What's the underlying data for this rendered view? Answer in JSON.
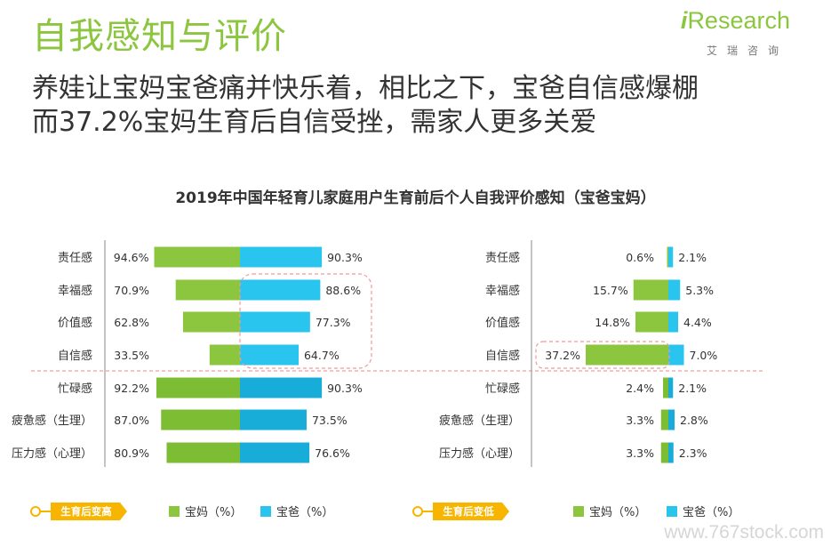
{
  "header": {
    "title": "自我感知与评价",
    "subtitle_line1": "养娃让宝妈宝爸痛并快乐着，相比之下，宝爸自信感爆棚",
    "subtitle_line2": "而37.2%宝妈生育后自信受挫，需家人更多关爱",
    "brand": "Research",
    "brand_prefix": "i",
    "brand_cn": "艾瑞咨询"
  },
  "watermark": "www.767stock.com",
  "colors": {
    "mom": "#8cc63f",
    "dad": "#29c5ef",
    "accent": "#f7b500",
    "highlight": "#f09a9a"
  },
  "chart_data": [
    {
      "type": "bar",
      "title": "2019年中国年轻育儿家庭用户生育前后个人自我评价感知（宝爸宝妈）",
      "legend_tag": "生育后变高",
      "categories": [
        "责任感",
        "幸福感",
        "价值感",
        "自信感",
        "忙碌感",
        "疲惫感（生理）",
        "压力感（心理）"
      ],
      "series": [
        {
          "name": "宝妈（%）",
          "values": [
            94.6,
            70.9,
            62.8,
            33.5,
            92.2,
            87.0,
            80.9
          ],
          "labels": [
            "94.6%",
            "70.9%",
            "62.8%",
            "33.5%",
            "92.2%",
            "87.0%",
            "80.9%"
          ]
        },
        {
          "name": "宝爸（%）",
          "values": [
            90.3,
            88.6,
            77.3,
            64.7,
            90.3,
            73.5,
            76.6
          ],
          "labels": [
            "90.3%",
            "88.6%",
            "77.3%",
            "64.7%",
            "90.3%",
            "73.5%",
            "76.6%"
          ]
        }
      ]
    },
    {
      "type": "bar",
      "title": "",
      "legend_tag": "生育后变低",
      "categories": [
        "责任感",
        "幸福感",
        "价值感",
        "自信感",
        "忙碌感",
        "疲惫感（生理）",
        "压力感（心理）"
      ],
      "series": [
        {
          "name": "宝妈（%）",
          "values": [
            0.6,
            15.7,
            14.8,
            37.2,
            2.4,
            3.3,
            3.3
          ],
          "labels": [
            "0.6%",
            "15.7%",
            "14.8%",
            "37.2%",
            "2.4%",
            "3.3%",
            "3.3%"
          ]
        },
        {
          "name": "宝爸（%）",
          "values": [
            2.1,
            5.3,
            4.4,
            7.0,
            2.1,
            2.8,
            2.3
          ],
          "labels": [
            "2.1%",
            "5.3%",
            "4.4%",
            "7.0%",
            "2.1%",
            "2.8%",
            "2.3%"
          ]
        }
      ]
    }
  ]
}
